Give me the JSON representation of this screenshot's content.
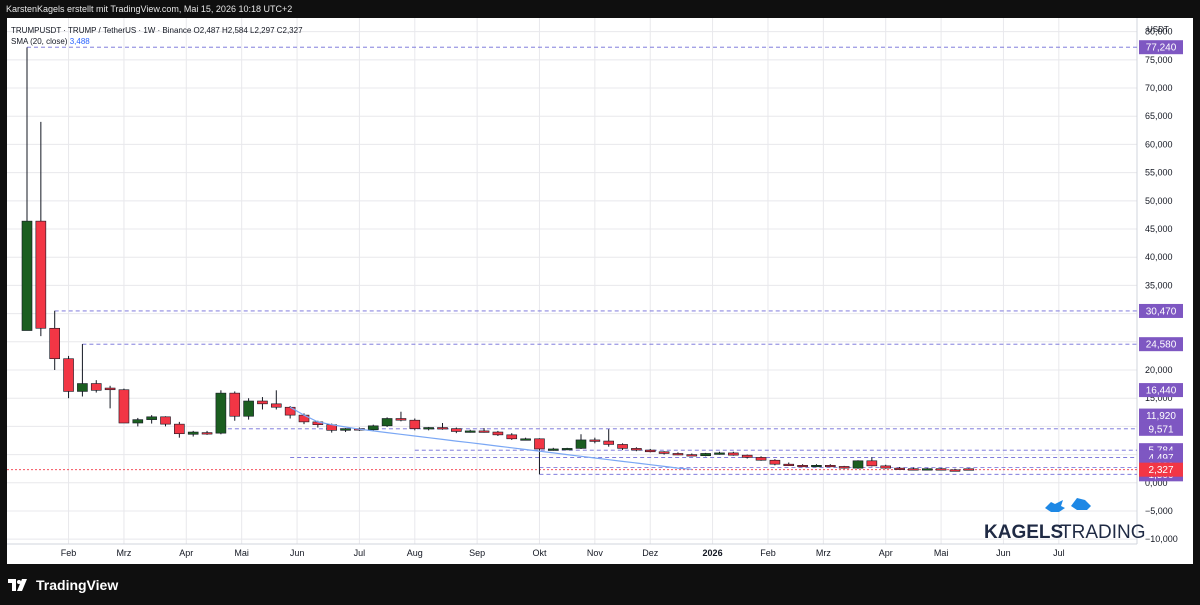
{
  "header": {
    "caption": "KarstenKagels erstellt mit TradingView.com, Mai 15, 2026 10:18 UTC+2"
  },
  "legend": {
    "symbol_line": "TRUMPUSDT · TRUMP / TetherUS · 1W · Binance  O2,487  H2,584  L2,297  C2,327",
    "sma_label": "SMA (20, close)",
    "sma_value": "3,488"
  },
  "watermark": {
    "text_bold": "KAGELS",
    "text_light": "TRADING"
  },
  "footer": {
    "logo_text": "TradingView"
  },
  "colors": {
    "up": "#1b5e20",
    "down": "#f23645",
    "sma": "#7aa7f4",
    "badge": "#7e57c2",
    "last_price": "#f23645",
    "grid": "#e8e8ec"
  },
  "chart_data": {
    "type": "candlestick",
    "title": "TRUMPUSDT · TRUMP / TetherUS · 1W · Binance",
    "currency_label": "USDT",
    "ylim": [
      -10.5,
      81
    ],
    "y_ticks": [
      -10,
      -5,
      0,
      5,
      10,
      15,
      20,
      25,
      30,
      35,
      40,
      45,
      50,
      55,
      60,
      65,
      70,
      75,
      80
    ],
    "y_tick_labels": [
      "−10,000",
      "−5,000",
      "0,000",
      "5,000",
      "10,000",
      "15,000",
      "20,000",
      "25,000",
      "30,000",
      "35,000",
      "40,000",
      "45,000",
      "50,000",
      "55,000",
      "60,000",
      "65,000",
      "70,000",
      "75,000",
      "80,000"
    ],
    "x_labels": [
      "Feb",
      "Mrz",
      "Apr",
      "Mai",
      "Jun",
      "Jul",
      "Aug",
      "Sep",
      "Okt",
      "Nov",
      "Dez",
      "2026",
      "Feb",
      "Mrz",
      "Apr",
      "Mai",
      "Jun",
      "Jul"
    ],
    "x_label_weeks": [
      3.0,
      7.0,
      11.5,
      15.5,
      19.5,
      24.0,
      28.0,
      32.5,
      37.0,
      41.0,
      45.0,
      49.5,
      53.5,
      57.5,
      62.0,
      66.0,
      70.5,
      74.5
    ],
    "candles": [
      {
        "o": 27.0,
        "h": 77.2,
        "l": 27.0,
        "c": 46.4
      },
      {
        "o": 46.4,
        "h": 64.0,
        "l": 26.0,
        "c": 27.4
      },
      {
        "o": 27.4,
        "h": 30.5,
        "l": 20.0,
        "c": 22.0
      },
      {
        "o": 22.0,
        "h": 22.5,
        "l": 15.0,
        "c": 16.2
      },
      {
        "o": 16.2,
        "h": 24.6,
        "l": 15.3,
        "c": 17.6
      },
      {
        "o": 17.6,
        "h": 18.2,
        "l": 16.0,
        "c": 16.4
      },
      {
        "o": 16.8,
        "h": 17.2,
        "l": 13.2,
        "c": 16.5
      },
      {
        "o": 16.5,
        "h": 16.7,
        "l": 11.0,
        "c": 10.6
      },
      {
        "o": 10.6,
        "h": 11.5,
        "l": 10.0,
        "c": 11.2
      },
      {
        "o": 11.2,
        "h": 12.0,
        "l": 10.5,
        "c": 11.7
      },
      {
        "o": 11.7,
        "h": 11.8,
        "l": 10.0,
        "c": 10.4
      },
      {
        "o": 10.4,
        "h": 10.8,
        "l": 8.0,
        "c": 8.7
      },
      {
        "o": 8.6,
        "h": 9.2,
        "l": 8.2,
        "c": 9.0
      },
      {
        "o": 8.9,
        "h": 9.2,
        "l": 8.5,
        "c": 8.8
      },
      {
        "o": 8.8,
        "h": 16.4,
        "l": 8.6,
        "c": 15.9
      },
      {
        "o": 15.9,
        "h": 16.2,
        "l": 11.0,
        "c": 11.8
      },
      {
        "o": 11.8,
        "h": 15.0,
        "l": 11.2,
        "c": 14.5
      },
      {
        "o": 14.5,
        "h": 15.2,
        "l": 13.0,
        "c": 14.0
      },
      {
        "o": 14.0,
        "h": 16.4,
        "l": 13.0,
        "c": 13.4
      },
      {
        "o": 13.4,
        "h": 13.6,
        "l": 11.4,
        "c": 12.0
      },
      {
        "o": 12.0,
        "h": 12.3,
        "l": 10.4,
        "c": 10.8
      },
      {
        "o": 10.8,
        "h": 11.0,
        "l": 9.8,
        "c": 10.3
      },
      {
        "o": 10.3,
        "h": 10.5,
        "l": 8.9,
        "c": 9.3
      },
      {
        "o": 9.3,
        "h": 9.7,
        "l": 9.0,
        "c": 9.6
      },
      {
        "o": 9.6,
        "h": 9.8,
        "l": 9.2,
        "c": 9.4
      },
      {
        "o": 9.4,
        "h": 10.3,
        "l": 9.1,
        "c": 10.1
      },
      {
        "o": 10.1,
        "h": 11.6,
        "l": 9.9,
        "c": 11.4
      },
      {
        "o": 11.4,
        "h": 12.6,
        "l": 10.9,
        "c": 11.1
      },
      {
        "o": 11.1,
        "h": 11.4,
        "l": 9.3,
        "c": 9.6
      },
      {
        "o": 9.6,
        "h": 9.9,
        "l": 9.3,
        "c": 9.8
      },
      {
        "o": 9.8,
        "h": 10.6,
        "l": 9.4,
        "c": 9.6
      },
      {
        "o": 9.6,
        "h": 9.8,
        "l": 8.8,
        "c": 9.1
      },
      {
        "o": 9.1,
        "h": 9.4,
        "l": 8.9,
        "c": 9.2
      },
      {
        "o": 9.2,
        "h": 9.7,
        "l": 8.9,
        "c": 9.0
      },
      {
        "o": 9.0,
        "h": 9.2,
        "l": 8.3,
        "c": 8.5
      },
      {
        "o": 8.5,
        "h": 8.8,
        "l": 7.6,
        "c": 7.8
      },
      {
        "o": 7.8,
        "h": 8.0,
        "l": 7.5,
        "c": 7.8
      },
      {
        "o": 7.8,
        "h": 7.9,
        "l": 1.5,
        "c": 6.0
      },
      {
        "o": 5.8,
        "h": 6.2,
        "l": 5.7,
        "c": 6.0
      },
      {
        "o": 5.9,
        "h": 6.2,
        "l": 5.8,
        "c": 6.1
      },
      {
        "o": 6.1,
        "h": 8.6,
        "l": 6.0,
        "c": 7.6
      },
      {
        "o": 7.6,
        "h": 8.0,
        "l": 7.0,
        "c": 7.4
      },
      {
        "o": 7.4,
        "h": 9.5,
        "l": 6.4,
        "c": 6.8
      },
      {
        "o": 6.8,
        "h": 7.0,
        "l": 5.8,
        "c": 6.1
      },
      {
        "o": 6.1,
        "h": 6.3,
        "l": 5.6,
        "c": 5.8
      },
      {
        "o": 5.8,
        "h": 6.0,
        "l": 5.4,
        "c": 5.5
      },
      {
        "o": 5.5,
        "h": 5.6,
        "l": 5.0,
        "c": 5.2
      },
      {
        "o": 5.2,
        "h": 5.4,
        "l": 4.9,
        "c": 5.0
      },
      {
        "o": 5.0,
        "h": 5.2,
        "l": 4.7,
        "c": 4.8
      },
      {
        "o": 4.8,
        "h": 5.3,
        "l": 4.7,
        "c": 5.2
      },
      {
        "o": 5.2,
        "h": 5.5,
        "l": 5.0,
        "c": 5.3
      },
      {
        "o": 5.3,
        "h": 5.5,
        "l": 4.8,
        "c": 4.9
      },
      {
        "o": 4.9,
        "h": 5.0,
        "l": 4.3,
        "c": 4.5
      },
      {
        "o": 4.5,
        "h": 4.7,
        "l": 3.9,
        "c": 4.0
      },
      {
        "o": 4.0,
        "h": 4.2,
        "l": 3.1,
        "c": 3.3
      },
      {
        "o": 3.3,
        "h": 3.6,
        "l": 3.0,
        "c": 3.1
      },
      {
        "o": 3.1,
        "h": 3.3,
        "l": 2.9,
        "c": 3.0
      },
      {
        "o": 3.0,
        "h": 3.3,
        "l": 2.9,
        "c": 3.1
      },
      {
        "o": 3.1,
        "h": 3.3,
        "l": 2.8,
        "c": 2.9
      },
      {
        "o": 2.9,
        "h": 3.0,
        "l": 2.5,
        "c": 2.6
      },
      {
        "o": 2.6,
        "h": 4.0,
        "l": 2.5,
        "c": 3.9
      },
      {
        "o": 3.9,
        "h": 4.5,
        "l": 2.9,
        "c": 3.0
      },
      {
        "o": 3.0,
        "h": 3.2,
        "l": 2.5,
        "c": 2.6
      },
      {
        "o": 2.6,
        "h": 2.8,
        "l": 2.4,
        "c": 2.5
      },
      {
        "o": 2.5,
        "h": 2.7,
        "l": 2.3,
        "c": 2.4
      },
      {
        "o": 2.4,
        "h": 2.6,
        "l": 2.3,
        "c": 2.5
      },
      {
        "o": 2.5,
        "h": 2.6,
        "l": 2.2,
        "c": 2.3
      },
      {
        "o": 2.3,
        "h": 2.5,
        "l": 2.1,
        "c": 2.2
      },
      {
        "o": 2.487,
        "h": 2.584,
        "l": 2.297,
        "c": 2.327
      }
    ],
    "sma": {
      "name": "SMA (20, close)",
      "start_week": 19,
      "values": [
        13.4,
        12.0,
        10.8,
        10.3,
        9.9,
        9.5,
        9.2,
        8.9,
        8.6,
        8.3,
        8.0,
        7.7,
        7.4,
        7.1,
        6.8,
        6.5,
        6.2,
        5.9,
        5.6,
        5.3,
        5.0,
        4.7,
        4.4,
        4.1,
        3.8,
        3.5,
        3.2,
        2.9,
        2.6,
        2.4
      ]
    },
    "level_lines": [
      {
        "value": 77.24,
        "label": "77,240",
        "start_week": 0
      },
      {
        "value": 30.47,
        "label": "30,470",
        "start_week": 2
      },
      {
        "value": 24.58,
        "label": "24,580",
        "start_week": 4
      },
      {
        "value": 9.571,
        "label": "9,571",
        "start_week": 14
      },
      {
        "value": 5.784,
        "label": "5,784",
        "start_week": 28
      },
      {
        "value": 4.497,
        "label": "4,497",
        "start_week": 19
      },
      {
        "value": 2.705,
        "label": "2,705",
        "start_week": 37
      },
      {
        "value": 1.5,
        "label": "1,500",
        "start_week": 37
      }
    ],
    "extra_badges": [
      {
        "value": 16.44,
        "label": "16,440"
      },
      {
        "value": 11.92,
        "label": "11,920"
      },
      {
        "value": 3.02,
        "label": "3,020"
      }
    ],
    "last_price": {
      "value": 2.327,
      "label": "2,327"
    },
    "grid": true,
    "legend_position": "top-left"
  }
}
